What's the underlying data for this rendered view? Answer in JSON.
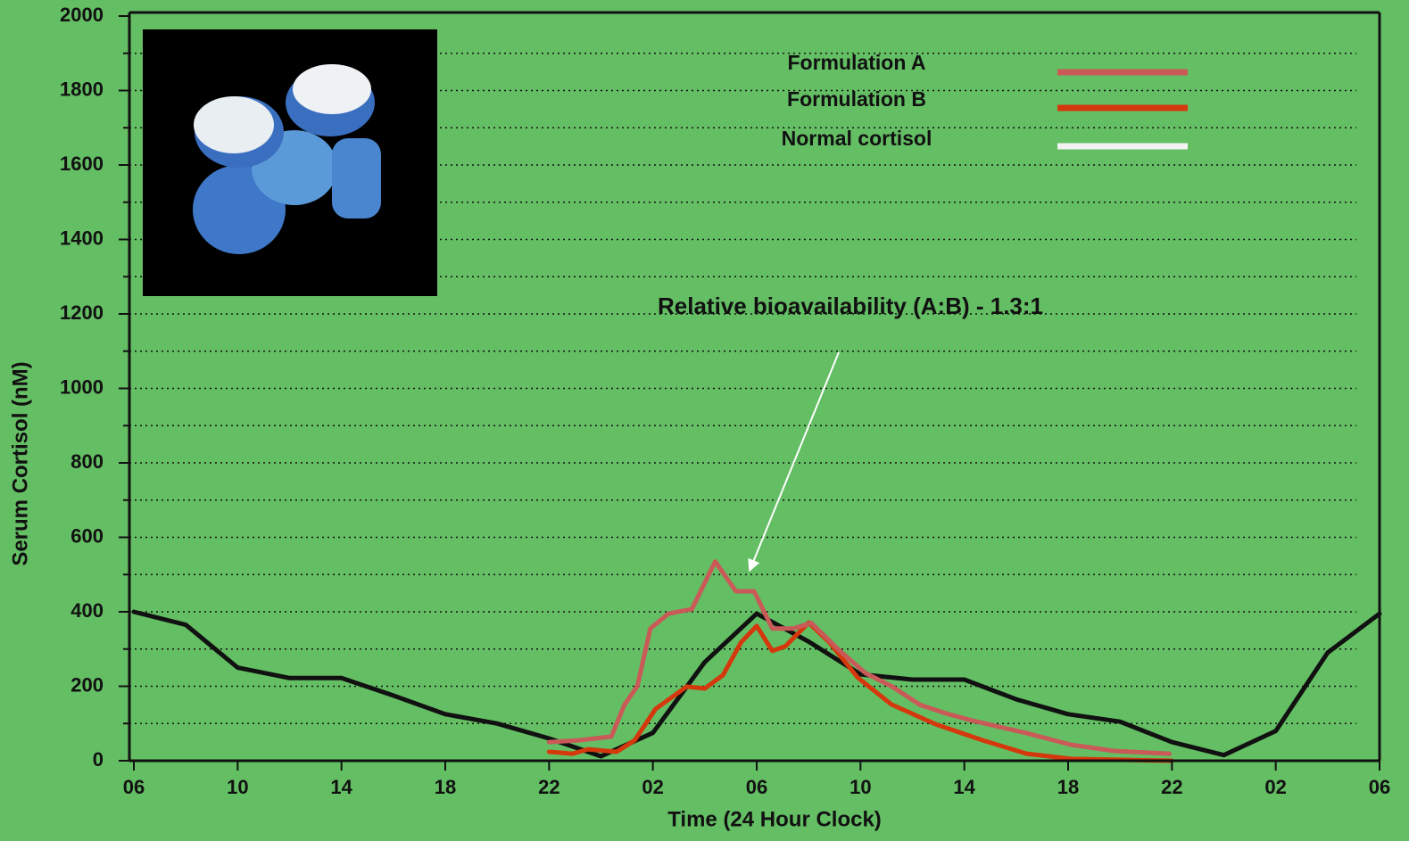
{
  "chart_data": {
    "type": "line",
    "x_label": "Time (24 Hour Clock)",
    "y_label": "Serum Cortisol (nM)",
    "annotation": "Relative bioavailability (A:B) - 1.3:1",
    "xlim": [
      0,
      48
    ],
    "xticks": [
      {
        "value": 0,
        "label": "06"
      },
      {
        "value": 4,
        "label": "10"
      },
      {
        "value": 8,
        "label": "14"
      },
      {
        "value": 12,
        "label": "18"
      },
      {
        "value": 16,
        "label": "22"
      },
      {
        "value": 20,
        "label": "02"
      },
      {
        "value": 24,
        "label": "06"
      },
      {
        "value": 28,
        "label": "10"
      },
      {
        "value": 32,
        "label": "14"
      },
      {
        "value": 36,
        "label": "18"
      },
      {
        "value": 40,
        "label": "22"
      },
      {
        "value": 44,
        "label": "02"
      },
      {
        "value": 48,
        "label": "06"
      }
    ],
    "ylim": [
      0,
      2000
    ],
    "yticks": [
      0,
      200,
      400,
      600,
      800,
      1000,
      1200,
      1400,
      1600,
      1800,
      2000
    ],
    "y_minor_ticks": [
      100,
      300,
      500,
      700,
      900,
      1100,
      1300,
      1500,
      1700,
      1900
    ],
    "grid": true,
    "series": [
      {
        "name": "Formulation A",
        "color": "#c95a58",
        "legend_color": "#c95a58",
        "x": [
          16,
          17.2,
          18.4,
          18.9,
          19.4,
          19.9,
          20.6,
          21.5,
          22.4,
          23.2,
          23.9,
          24.6,
          25.4,
          26.1,
          27.2,
          28.2,
          29.2,
          30.3,
          31.3,
          32.3,
          34.4,
          36.1,
          37.8,
          39.9
        ],
        "values": [
          50,
          55,
          65,
          150,
          200,
          355,
          395,
          407,
          535,
          455,
          455,
          355,
          355,
          370,
          295,
          235,
          200,
          150,
          127,
          108,
          74,
          43,
          26,
          19
        ]
      },
      {
        "name": "Formulation B",
        "color": "#d5380c",
        "legend_color": "#d5380c",
        "x": [
          16,
          16.9,
          17.5,
          18.6,
          19.3,
          20.1,
          21.3,
          22,
          22.7,
          23.4,
          24,
          24.6,
          25.1,
          26,
          26.8,
          27.9,
          29.2,
          30.9,
          32.7,
          34.4,
          36.1,
          40
        ],
        "values": [
          24,
          19,
          31,
          24,
          55,
          139,
          199,
          194,
          230,
          318,
          362,
          295,
          307,
          371,
          318,
          223,
          151,
          98,
          55,
          19,
          5,
          0
        ]
      },
      {
        "name": "Normal cortisol",
        "color": "#111111",
        "legend_color": "#f2f2f2",
        "x": [
          0,
          2,
          4,
          6,
          8,
          10,
          12,
          14,
          16,
          18,
          20,
          22,
          24,
          26,
          28,
          30,
          32,
          34,
          36,
          38,
          40,
          42,
          44,
          46,
          48
        ],
        "values": [
          400,
          365,
          250,
          222,
          222,
          175,
          125,
          100,
          60,
          12,
          75,
          265,
          395,
          320,
          232,
          218,
          218,
          165,
          125,
          105,
          50,
          15,
          80,
          290,
          395
        ]
      }
    ]
  }
}
